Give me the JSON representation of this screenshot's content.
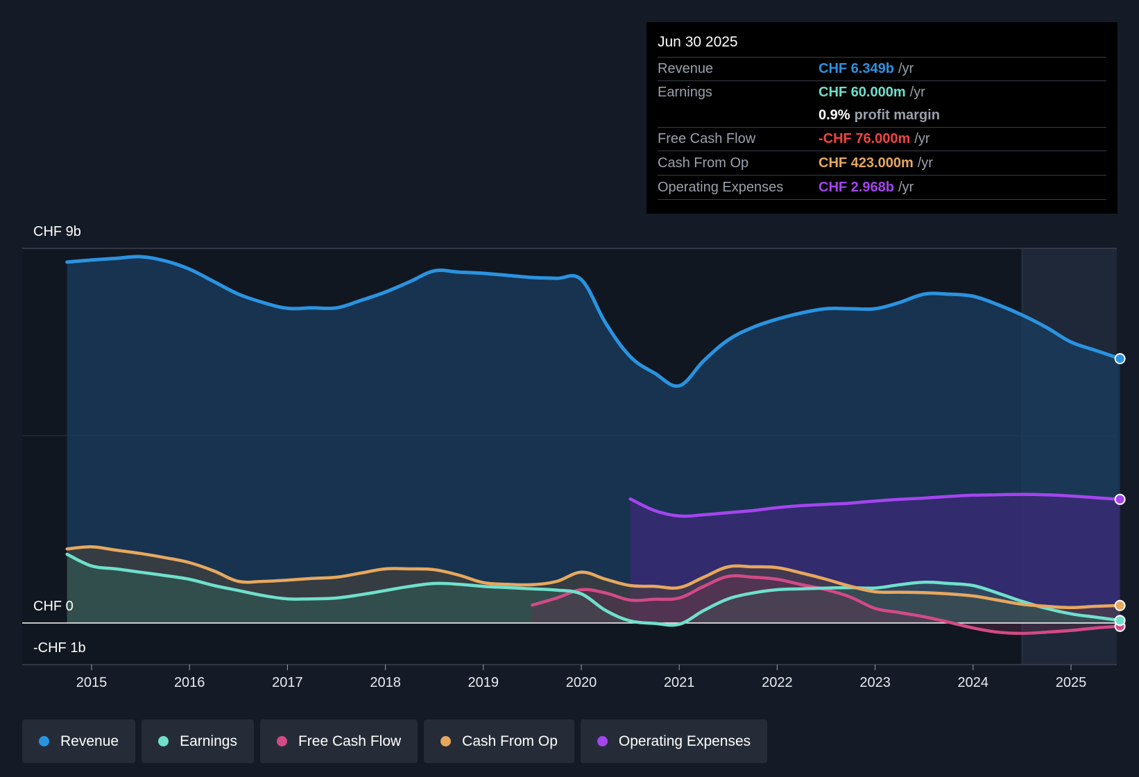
{
  "tooltip": {
    "date": "Jun 30 2025",
    "rows": [
      {
        "label": "Revenue",
        "value": "CHF 6.349b",
        "unit": "/yr"
      },
      {
        "label": "Earnings",
        "value": "CHF 60.000m",
        "unit": "/yr"
      },
      {
        "label": "",
        "value": "0.9%",
        "unit": "profit margin"
      },
      {
        "label": "Free Cash Flow",
        "value": "-CHF 76.000m",
        "unit": "/yr"
      },
      {
        "label": "Cash From Op",
        "value": "CHF 423.000m",
        "unit": "/yr"
      },
      {
        "label": "Operating Expenses",
        "value": "CHF 2.968b",
        "unit": "/yr"
      }
    ]
  },
  "colors": {
    "background": "#151b26",
    "revenue": "#2a93e0",
    "earnings": "#6fe0cb",
    "free_cash_flow": "#d24a86",
    "cash_from_op": "#e7a85e",
    "operating_expenses": "#a445ee",
    "negative": "#ef4444"
  },
  "legend": [
    {
      "label": "Revenue",
      "color": "#2a93e0"
    },
    {
      "label": "Earnings",
      "color": "#6fe0cb"
    },
    {
      "label": "Free Cash Flow",
      "color": "#d24a86"
    },
    {
      "label": "Cash From Op",
      "color": "#e7a85e"
    },
    {
      "label": "Operating Expenses",
      "color": "#a445ee"
    }
  ],
  "chart_data": {
    "type": "area",
    "title": "",
    "xlabel": "",
    "ylabel": "",
    "y_labels": {
      "top": "CHF 9b",
      "zero": "CHF 0",
      "bottom": "-CHF 1b"
    },
    "ylim": [
      -1,
      9
    ],
    "xlim": [
      2014.0,
      2025.5
    ],
    "x_ticks": [
      "2015",
      "2016",
      "2017",
      "2018",
      "2019",
      "2020",
      "2021",
      "2022",
      "2023",
      "2024",
      "2025"
    ],
    "highlight_from": 2024.5,
    "series": [
      {
        "name": "Revenue",
        "color": "#2a93e0",
        "points": [
          [
            2014.75,
            8.67
          ],
          [
            2015.0,
            8.72
          ],
          [
            2015.25,
            8.76
          ],
          [
            2015.5,
            8.8
          ],
          [
            2015.75,
            8.7
          ],
          [
            2016.0,
            8.5
          ],
          [
            2016.25,
            8.2
          ],
          [
            2016.5,
            7.9
          ],
          [
            2016.75,
            7.7
          ],
          [
            2017.0,
            7.56
          ],
          [
            2017.25,
            7.57
          ],
          [
            2017.5,
            7.57
          ],
          [
            2017.75,
            7.75
          ],
          [
            2018.0,
            7.95
          ],
          [
            2018.25,
            8.2
          ],
          [
            2018.5,
            8.46
          ],
          [
            2018.75,
            8.43
          ],
          [
            2019.0,
            8.4
          ],
          [
            2019.25,
            8.35
          ],
          [
            2019.5,
            8.3
          ],
          [
            2019.75,
            8.28
          ],
          [
            2020.0,
            8.25
          ],
          [
            2020.25,
            7.2
          ],
          [
            2020.5,
            6.4
          ],
          [
            2020.75,
            6.0
          ],
          [
            2021.0,
            5.7
          ],
          [
            2021.25,
            6.3
          ],
          [
            2021.5,
            6.8
          ],
          [
            2021.75,
            7.1
          ],
          [
            2022.0,
            7.3
          ],
          [
            2022.25,
            7.45
          ],
          [
            2022.5,
            7.55
          ],
          [
            2022.75,
            7.55
          ],
          [
            2023.0,
            7.55
          ],
          [
            2023.25,
            7.7
          ],
          [
            2023.5,
            7.9
          ],
          [
            2023.75,
            7.9
          ],
          [
            2024.0,
            7.85
          ],
          [
            2024.25,
            7.65
          ],
          [
            2024.5,
            7.4
          ],
          [
            2024.75,
            7.1
          ],
          [
            2025.0,
            6.75
          ],
          [
            2025.25,
            6.55
          ],
          [
            2025.5,
            6.35
          ]
        ]
      },
      {
        "name": "Earnings",
        "color": "#6fe0cb",
        "points": [
          [
            2014.75,
            1.65
          ],
          [
            2015.0,
            1.37
          ],
          [
            2015.25,
            1.3
          ],
          [
            2015.5,
            1.22
          ],
          [
            2015.75,
            1.14
          ],
          [
            2016.0,
            1.05
          ],
          [
            2016.25,
            0.9
          ],
          [
            2016.5,
            0.78
          ],
          [
            2016.75,
            0.66
          ],
          [
            2017.0,
            0.58
          ],
          [
            2017.25,
            0.58
          ],
          [
            2017.5,
            0.6
          ],
          [
            2017.75,
            0.68
          ],
          [
            2018.0,
            0.78
          ],
          [
            2018.25,
            0.88
          ],
          [
            2018.5,
            0.95
          ],
          [
            2018.75,
            0.93
          ],
          [
            2019.0,
            0.88
          ],
          [
            2019.25,
            0.85
          ],
          [
            2019.5,
            0.82
          ],
          [
            2019.75,
            0.79
          ],
          [
            2020.0,
            0.7
          ],
          [
            2020.25,
            0.3
          ],
          [
            2020.5,
            0.05
          ],
          [
            2020.75,
            -0.01
          ],
          [
            2021.0,
            -0.03
          ],
          [
            2021.25,
            0.3
          ],
          [
            2021.5,
            0.58
          ],
          [
            2021.75,
            0.72
          ],
          [
            2022.0,
            0.8
          ],
          [
            2022.25,
            0.82
          ],
          [
            2022.5,
            0.84
          ],
          [
            2022.75,
            0.85
          ],
          [
            2023.0,
            0.84
          ],
          [
            2023.25,
            0.92
          ],
          [
            2023.5,
            0.98
          ],
          [
            2023.75,
            0.95
          ],
          [
            2024.0,
            0.9
          ],
          [
            2024.25,
            0.72
          ],
          [
            2024.5,
            0.52
          ],
          [
            2024.75,
            0.35
          ],
          [
            2025.0,
            0.22
          ],
          [
            2025.25,
            0.14
          ],
          [
            2025.5,
            0.06
          ]
        ]
      },
      {
        "name": "Free Cash Flow",
        "color": "#d24a86",
        "points": [
          [
            2019.5,
            0.43
          ],
          [
            2019.75,
            0.6
          ],
          [
            2020.0,
            0.8
          ],
          [
            2020.25,
            0.72
          ],
          [
            2020.5,
            0.55
          ],
          [
            2020.75,
            0.57
          ],
          [
            2021.0,
            0.6
          ],
          [
            2021.25,
            0.88
          ],
          [
            2021.5,
            1.12
          ],
          [
            2021.75,
            1.1
          ],
          [
            2022.0,
            1.05
          ],
          [
            2022.25,
            0.92
          ],
          [
            2022.5,
            0.8
          ],
          [
            2022.75,
            0.62
          ],
          [
            2023.0,
            0.35
          ],
          [
            2023.25,
            0.25
          ],
          [
            2023.5,
            0.15
          ],
          [
            2023.75,
            0.02
          ],
          [
            2024.0,
            -0.12
          ],
          [
            2024.25,
            -0.22
          ],
          [
            2024.5,
            -0.25
          ],
          [
            2024.75,
            -0.22
          ],
          [
            2025.0,
            -0.18
          ],
          [
            2025.25,
            -0.12
          ],
          [
            2025.5,
            -0.08
          ]
        ]
      },
      {
        "name": "Cash From Op",
        "color": "#e7a85e",
        "points": [
          [
            2014.75,
            1.78
          ],
          [
            2015.0,
            1.83
          ],
          [
            2015.25,
            1.75
          ],
          [
            2015.5,
            1.67
          ],
          [
            2015.75,
            1.57
          ],
          [
            2016.0,
            1.45
          ],
          [
            2016.25,
            1.25
          ],
          [
            2016.5,
            1.0
          ],
          [
            2016.75,
            1.0
          ],
          [
            2017.0,
            1.03
          ],
          [
            2017.25,
            1.07
          ],
          [
            2017.5,
            1.1
          ],
          [
            2017.75,
            1.2
          ],
          [
            2018.0,
            1.3
          ],
          [
            2018.25,
            1.3
          ],
          [
            2018.5,
            1.28
          ],
          [
            2018.75,
            1.15
          ],
          [
            2019.0,
            0.97
          ],
          [
            2019.25,
            0.93
          ],
          [
            2019.5,
            0.92
          ],
          [
            2019.75,
            1.0
          ],
          [
            2020.0,
            1.22
          ],
          [
            2020.25,
            1.05
          ],
          [
            2020.5,
            0.9
          ],
          [
            2020.75,
            0.88
          ],
          [
            2021.0,
            0.85
          ],
          [
            2021.25,
            1.1
          ],
          [
            2021.5,
            1.35
          ],
          [
            2021.75,
            1.35
          ],
          [
            2022.0,
            1.33
          ],
          [
            2022.25,
            1.2
          ],
          [
            2022.5,
            1.05
          ],
          [
            2022.75,
            0.88
          ],
          [
            2023.0,
            0.75
          ],
          [
            2023.25,
            0.74
          ],
          [
            2023.5,
            0.73
          ],
          [
            2023.75,
            0.7
          ],
          [
            2024.0,
            0.65
          ],
          [
            2024.25,
            0.55
          ],
          [
            2024.5,
            0.45
          ],
          [
            2024.75,
            0.4
          ],
          [
            2025.0,
            0.37
          ],
          [
            2025.25,
            0.4
          ],
          [
            2025.5,
            0.42
          ]
        ]
      },
      {
        "name": "Operating Expenses",
        "color": "#a445ee",
        "points": [
          [
            2020.5,
            2.98
          ],
          [
            2020.75,
            2.7
          ],
          [
            2021.0,
            2.57
          ],
          [
            2021.25,
            2.6
          ],
          [
            2021.5,
            2.65
          ],
          [
            2021.75,
            2.7
          ],
          [
            2022.0,
            2.77
          ],
          [
            2022.25,
            2.82
          ],
          [
            2022.5,
            2.85
          ],
          [
            2022.75,
            2.88
          ],
          [
            2023.0,
            2.93
          ],
          [
            2023.25,
            2.97
          ],
          [
            2023.5,
            3.0
          ],
          [
            2023.75,
            3.04
          ],
          [
            2024.0,
            3.07
          ],
          [
            2024.25,
            3.08
          ],
          [
            2024.5,
            3.09
          ],
          [
            2024.75,
            3.08
          ],
          [
            2025.0,
            3.05
          ],
          [
            2025.25,
            3.01
          ],
          [
            2025.5,
            2.97
          ]
        ]
      }
    ]
  }
}
